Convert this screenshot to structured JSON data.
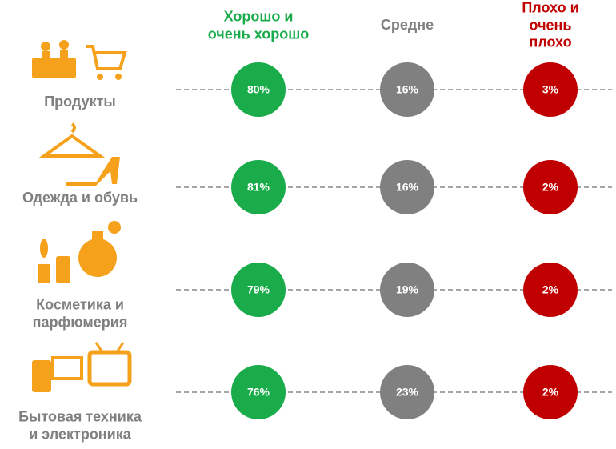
{
  "chart_data": {
    "type": "matrix",
    "categories": [
      "Продукты",
      "Одежда и обувь",
      "Косметика и\nпарфюмерия",
      "Бытовая техника\nи электроника"
    ],
    "series": [
      {
        "name": "Хорошо и\nочень хорошо",
        "color": "#1aab4b",
        "values": [
          80,
          81,
          79,
          76
        ],
        "value_labels": [
          "80%",
          "81%",
          "79%",
          "76%"
        ]
      },
      {
        "name": "Средне",
        "color": "#808080",
        "values": [
          16,
          16,
          19,
          23
        ],
        "value_labels": [
          "16%",
          "16%",
          "19%",
          "23%"
        ]
      },
      {
        "name": "Плохо и\nочень плохо",
        "color": "#c00000",
        "values": [
          3,
          2,
          2,
          2
        ],
        "value_labels": [
          "3%",
          "2%",
          "2%",
          "2%"
        ]
      }
    ]
  }
}
